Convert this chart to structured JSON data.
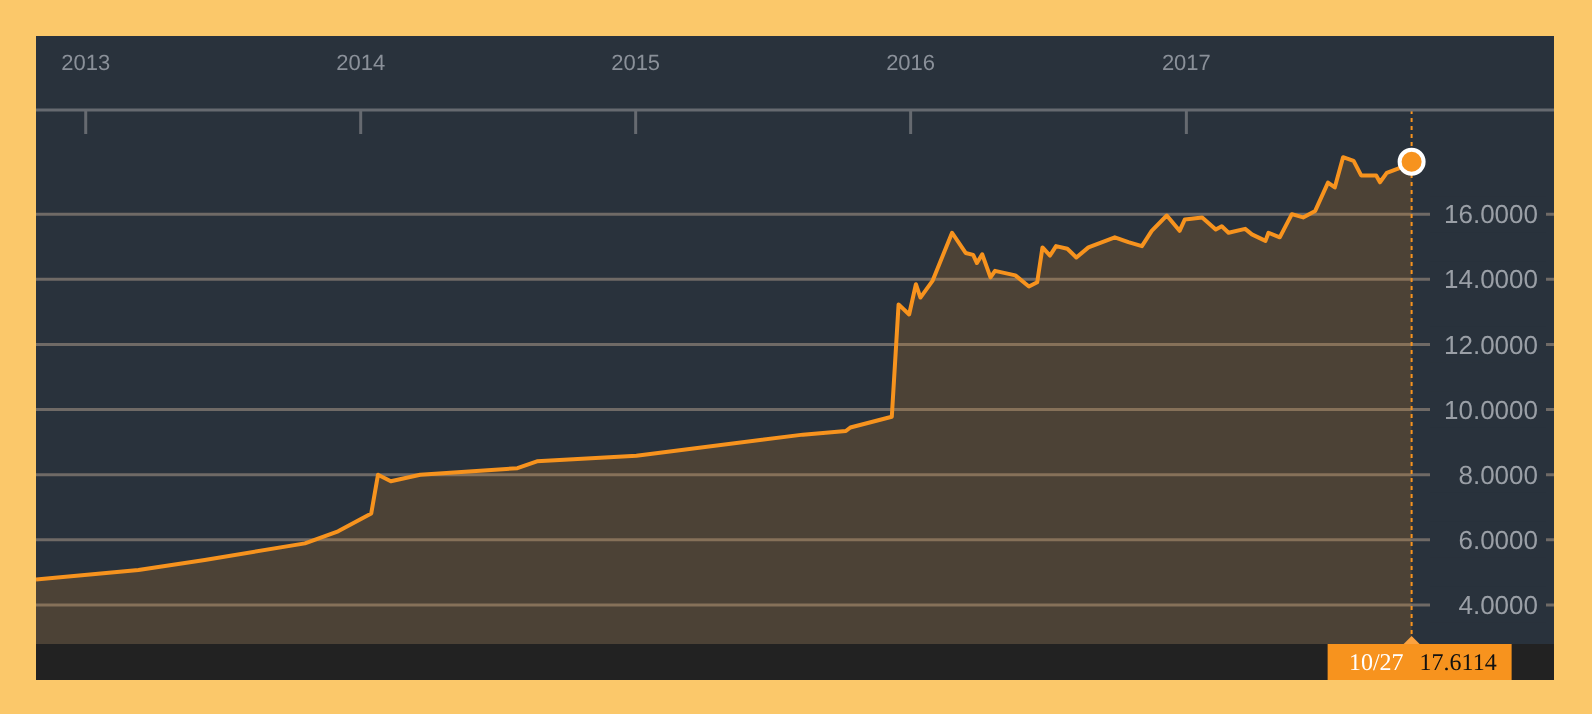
{
  "chart_data": {
    "type": "area",
    "x": [
      "2012-10-27",
      "2013-03-12",
      "2013-06-08",
      "2013-10-19",
      "2013-12-02",
      "2014-01-15",
      "2014-01-24",
      "2014-02-10",
      "2014-03-21",
      "2014-07-28",
      "2014-08-23",
      "2015-01-02",
      "2015-08-11",
      "2015-10-07",
      "2015-10-13",
      "2015-12-07",
      "2015-12-16",
      "2015-12-30",
      "2016-01-08",
      "2016-01-14",
      "2016-01-30",
      "2016-02-25",
      "2016-03-14",
      "2016-03-24",
      "2016-03-29",
      "2016-04-05",
      "2016-04-16",
      "2016-04-22",
      "2016-05-19",
      "2016-06-06",
      "2016-06-17",
      "2016-06-24",
      "2016-07-04",
      "2016-07-12",
      "2016-07-27",
      "2016-08-08",
      "2016-08-24",
      "2016-09-28",
      "2016-10-16",
      "2016-11-03",
      "2016-11-16",
      "2016-12-06",
      "2016-12-23",
      "2016-12-30",
      "2017-01-22",
      "2017-02-09",
      "2017-02-17",
      "2017-02-26",
      "2017-03-20",
      "2017-03-29",
      "2017-04-16",
      "2017-04-20",
      "2017-05-05",
      "2017-05-21",
      "2017-06-05",
      "2017-06-21",
      "2017-07-08",
      "2017-07-17",
      "2017-07-28",
      "2017-08-11",
      "2017-08-21",
      "2017-09-10",
      "2017-09-15",
      "2017-09-24",
      "2017-10-09",
      "2017-10-27"
    ],
    "series": [
      {
        "color": "#f7931e",
        "values": [
          4.78,
          5.07,
          5.38,
          5.89,
          6.26,
          6.81,
          8.0,
          7.8,
          8.0,
          8.2,
          8.41,
          8.58,
          9.23,
          9.34,
          9.45,
          9.78,
          13.23,
          12.92,
          13.85,
          13.44,
          13.95,
          15.43,
          14.81,
          14.75,
          14.5,
          14.77,
          14.06,
          14.26,
          14.12,
          13.78,
          13.91,
          14.98,
          14.73,
          15.02,
          14.94,
          14.67,
          14.98,
          15.29,
          15.14,
          15.02,
          15.49,
          15.96,
          15.49,
          15.84,
          15.9,
          15.53,
          15.63,
          15.43,
          15.55,
          15.38,
          15.18,
          15.43,
          15.29,
          16.0,
          15.9,
          16.1,
          16.97,
          16.82,
          17.75,
          17.64,
          17.19,
          17.19,
          16.98,
          17.27,
          17.4,
          17.6114
        ]
      }
    ],
    "xlim": [
      "2012-10-27",
      "2018-05-04"
    ],
    "xticks": [
      {
        "value": "2013-01-01",
        "label": "2013"
      },
      {
        "value": "2014-01-01",
        "label": "2014"
      },
      {
        "value": "2015-01-01",
        "label": "2015"
      },
      {
        "value": "2016-01-01",
        "label": "2016"
      },
      {
        "value": "2017-01-01",
        "label": "2017"
      }
    ],
    "ylim": [
      2.8,
      19.2
    ],
    "yticks": [
      {
        "value": 4,
        "label": "4.0000"
      },
      {
        "value": 6,
        "label": "6.0000"
      },
      {
        "value": 8,
        "label": "8.0000"
      },
      {
        "value": 10,
        "label": "10.0000"
      },
      {
        "value": 12,
        "label": "12.0000"
      },
      {
        "value": 14,
        "label": "14.0000"
      },
      {
        "value": 16,
        "label": "16.0000"
      }
    ],
    "grid": "y",
    "ref_lines": [
      {
        "axis": "x",
        "value": "2017-10-27",
        "label": null,
        "color": "#f7931e",
        "line_style": "dotted"
      }
    ],
    "annotations": [
      "10/27",
      "17.6114"
    ]
  }
}
